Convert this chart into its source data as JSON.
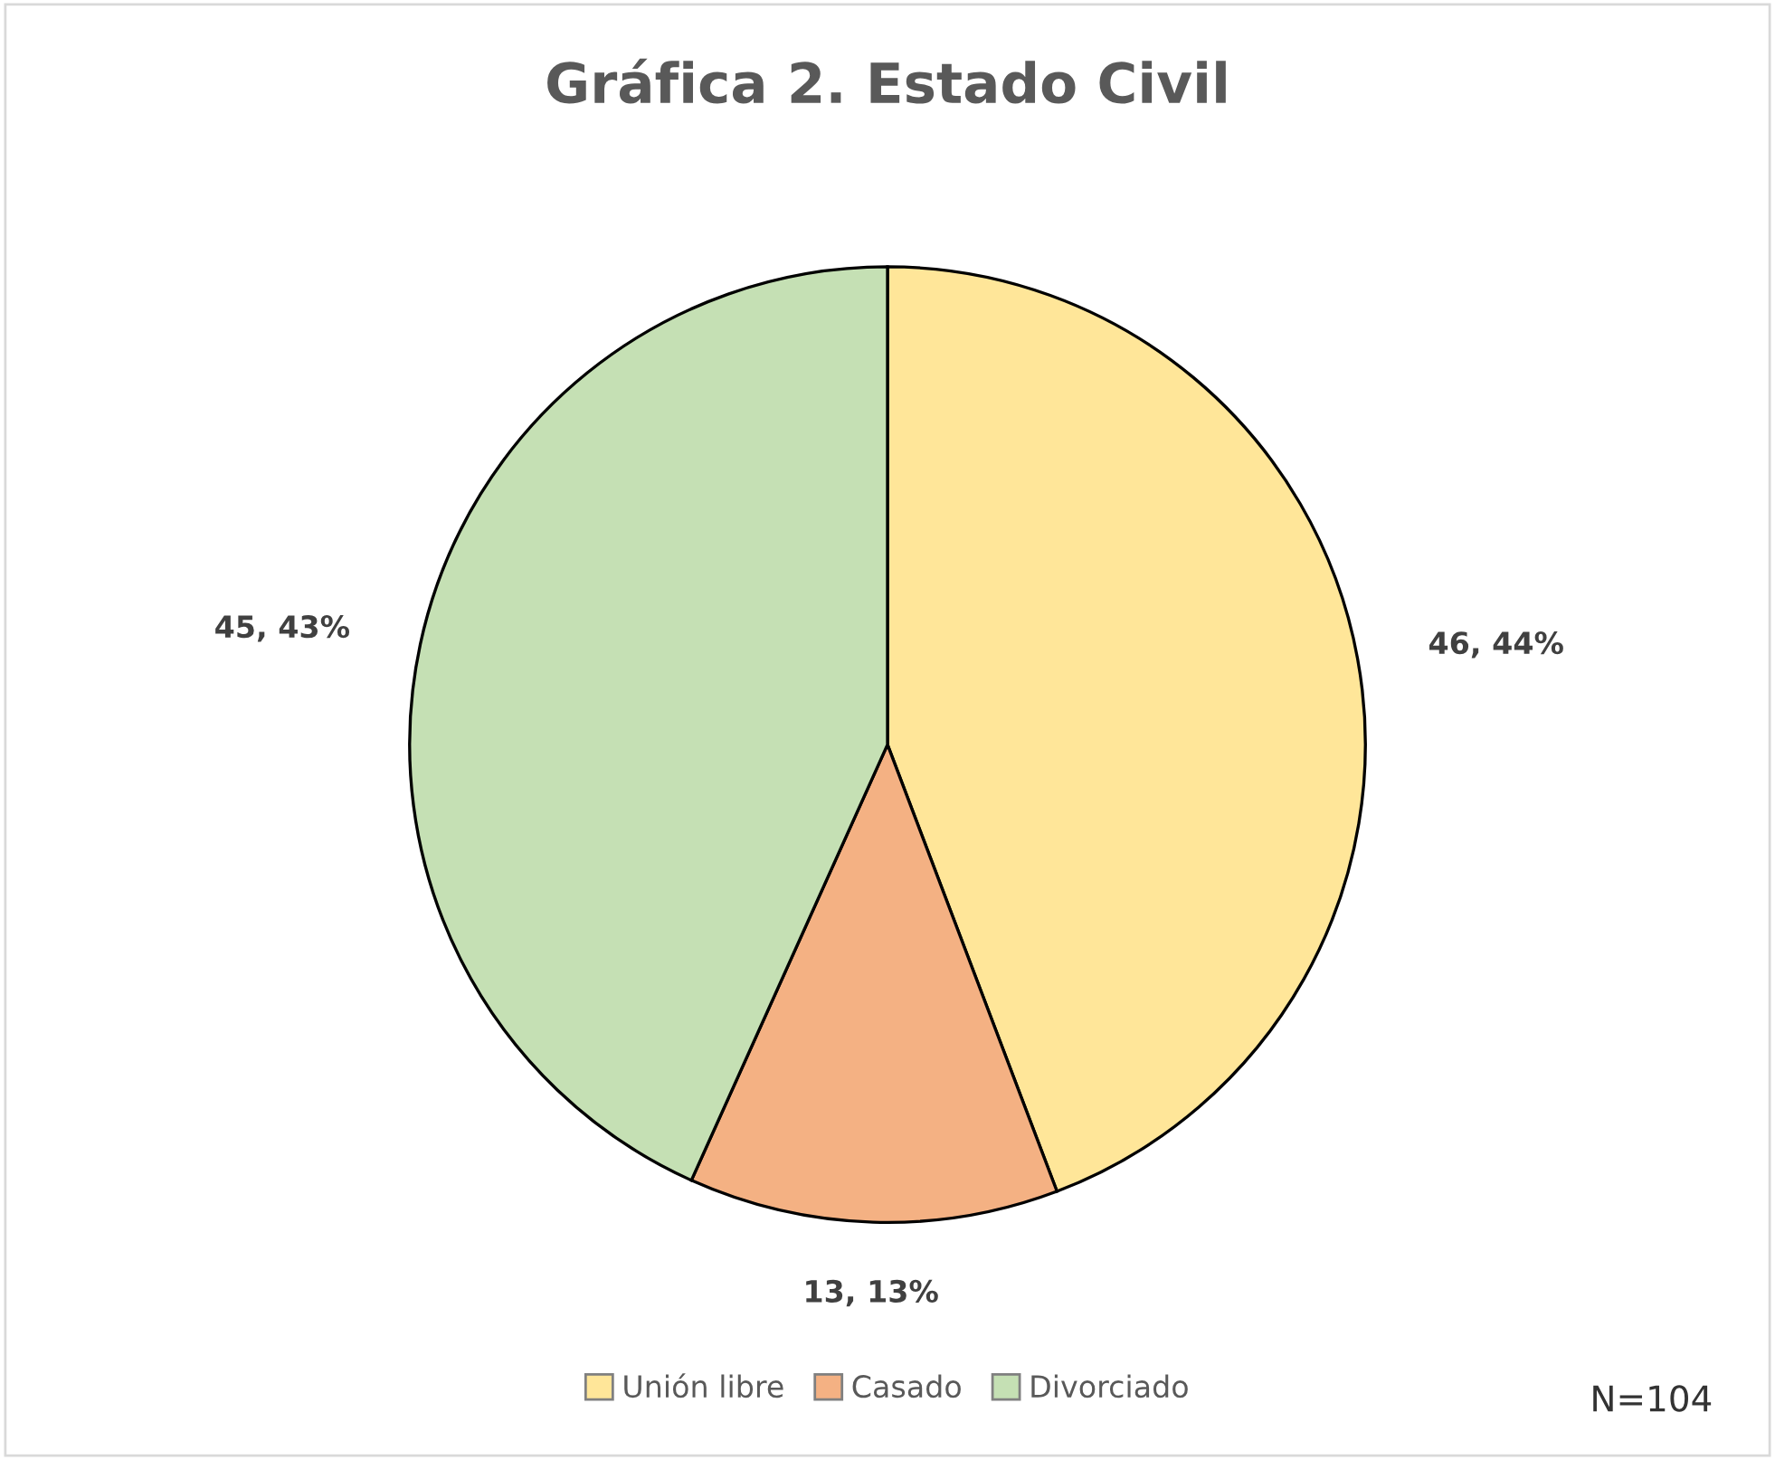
{
  "chart_data": {
    "type": "pie",
    "title": "Gráfica 2. Estado Civil",
    "categories": [
      "Unión libre",
      "Casado",
      "Divorciado"
    ],
    "values": [
      46,
      13,
      45
    ],
    "colors": [
      "#ffe699",
      "#f4b183",
      "#c5e0b4"
    ],
    "value_labels": [
      "46, 44%",
      "13, 13%",
      "45, 43%"
    ],
    "legend": "bottom",
    "annotations": [
      "N=104"
    ]
  }
}
